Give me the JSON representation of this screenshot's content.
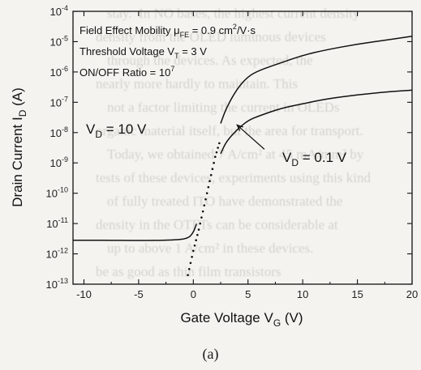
{
  "background_text": [
    "stay.  In NO bases, the highest current density",
    "density from the OLED luminous devices",
    "through the devices. As expected, the",
    "nearly more hardly to maintain. This",
    "not a factor limiting the current in OLEDs",
    "organic material itself, but the area for transport.",
    "Today, we obtained 7 A/cm² at 45 mA/mm² by",
    "tests of these devices, experiments using this kind",
    "of fully treated ITO have demonstrated the",
    "density in the OTFTs can be considerable at",
    "up to above 1 A/cm² in these devices.",
    "be as good as thin film transistors"
  ],
  "caption": "(a)",
  "chart_data": {
    "type": "line",
    "title": "",
    "xlabel": "Gate Voltage  V",
    "xlabel_sub": "G",
    "xlabel_unit": " (V)",
    "ylabel": "Drain Current  I",
    "ylabel_sub": "D",
    "ylabel_unit": " (A)",
    "xlim": [
      -11,
      20
    ],
    "ylim_log10": [
      -13,
      -4
    ],
    "yscale": "log",
    "x_ticks": [
      -10,
      -5,
      0,
      5,
      10,
      15,
      20
    ],
    "x_tick_labels": [
      "-10",
      "-5",
      "0",
      "5",
      "10",
      "15",
      "20"
    ],
    "y_ticks_log10": [
      -13,
      -12,
      -11,
      -10,
      -9,
      -8,
      -7,
      -6,
      -5,
      -4
    ],
    "y_tick_base": "10",
    "y_tick_exponents": [
      "-13",
      "-12",
      "-11",
      "-10",
      "-9",
      "-8",
      "-7",
      "-6",
      "-5",
      "-4"
    ],
    "grid": false,
    "legend": "none",
    "annotations_box": [
      {
        "text": "Field Effect Mobility  μ",
        "sub": "FE",
        "rest": " = 0.9 cm",
        "sup": "2",
        "tail": "/V·s"
      },
      {
        "text": "Threshold Voltage V",
        "sub": "T",
        "rest": " = 3 V",
        "sup": "",
        "tail": ""
      },
      {
        "text": "ON/OFF Ratio = 10",
        "sub": "",
        "rest": "",
        "sup": "7",
        "tail": ""
      }
    ],
    "series": [
      {
        "name": "V_D = 10 V",
        "label_main": "V",
        "label_sub": "D",
        "label_rest": " = 10 V",
        "style": "solid",
        "x": [
          2.5,
          3,
          4,
          5,
          6,
          8,
          10,
          12,
          15,
          18,
          20
        ],
        "y_log10": [
          -7.7,
          -7.2,
          -6.55,
          -6.15,
          -5.95,
          -5.7,
          -5.45,
          -5.28,
          -5.08,
          -4.93,
          -4.82
        ]
      },
      {
        "name": "V_D = 0.1 V",
        "label_main": "V",
        "label_sub": "D",
        "label_rest": " = 0.1 V",
        "style": "solid",
        "x": [
          2.5,
          3,
          4,
          5,
          6,
          8,
          10,
          12,
          15,
          18,
          20
        ],
        "y_log10": [
          -8.7,
          -8.3,
          -7.9,
          -7.6,
          -7.45,
          -7.2,
          -7.05,
          -6.9,
          -6.75,
          -6.65,
          -6.6
        ]
      },
      {
        "name": "subthreshold",
        "style": "dotted",
        "x": [
          -0.5,
          0,
          0.5,
          1,
          1.5,
          2,
          2.5
        ],
        "y_log10": [
          -12.7,
          -11.9,
          -11.2,
          -10.4,
          -9.6,
          -8.8,
          -8.2
        ]
      },
      {
        "name": "off-current",
        "style": "solid",
        "x": [
          -11,
          -8,
          -5,
          -2,
          -0.5,
          0,
          0.3
        ],
        "y_log10": [
          -11.55,
          -11.55,
          -11.56,
          -11.55,
          -11.5,
          -11.3,
          -11.0
        ]
      }
    ],
    "arrow_annotation": {
      "from_x": 6.5,
      "from_y_log10": -8.55,
      "to_x": 4.0,
      "to_y_log10": -7.75
    }
  }
}
